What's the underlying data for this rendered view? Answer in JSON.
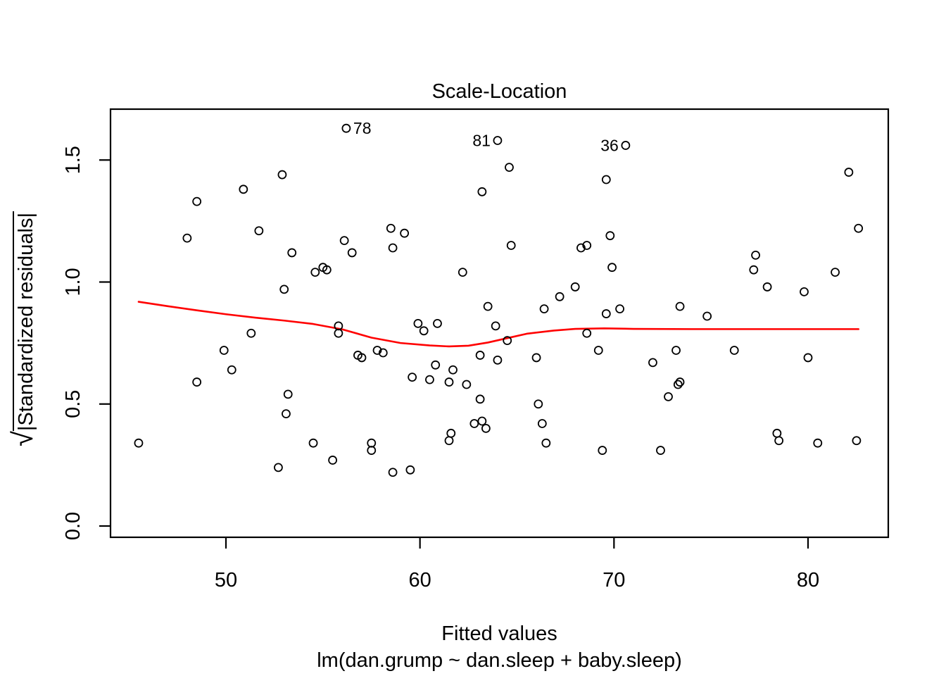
{
  "figure": {
    "background": "#ffffff"
  },
  "chart_data": {
    "type": "scatter",
    "title": "Scale-Location",
    "xlabel": "Fitted values",
    "xlabel_sub": "lm(dan.grump ~ dan.sleep + baby.sleep)",
    "ylabel_radical": "√",
    "ylabel_text": "|Standardized residuals|",
    "x_ticks": [
      "50",
      "60",
      "70",
      "80"
    ],
    "y_ticks": [
      "0.0",
      "0.5",
      "1.0",
      "1.5"
    ],
    "xlim": [
      44.1,
      84.2
    ],
    "ylim": [
      -0.05,
      1.71
    ],
    "grid": false,
    "legend": false,
    "point_color": "#000000",
    "smooth_color": "#ff0000",
    "points": [
      [
        56.2,
        1.63
      ],
      [
        52.9,
        1.44
      ],
      [
        50.9,
        1.38
      ],
      [
        48.5,
        1.33
      ],
      [
        51.7,
        1.21
      ],
      [
        48.0,
        1.18
      ],
      [
        56.1,
        1.17
      ],
      [
        56.5,
        1.12
      ],
      [
        53.4,
        1.12
      ],
      [
        54.6,
        1.04
      ],
      [
        55.0,
        1.06
      ],
      [
        55.2,
        1.05
      ],
      [
        53.0,
        0.97
      ],
      [
        64.0,
        1.58
      ],
      [
        70.6,
        1.56
      ],
      [
        64.6,
        1.47
      ],
      [
        69.6,
        1.42
      ],
      [
        63.2,
        1.37
      ],
      [
        58.5,
        1.22
      ],
      [
        59.2,
        1.2
      ],
      [
        58.6,
        1.14
      ],
      [
        64.7,
        1.15
      ],
      [
        68.3,
        1.14
      ],
      [
        68.6,
        1.15
      ],
      [
        69.8,
        1.19
      ],
      [
        69.9,
        1.06
      ],
      [
        62.2,
        1.04
      ],
      [
        68.0,
        0.98
      ],
      [
        67.2,
        0.94
      ],
      [
        66.4,
        0.89
      ],
      [
        63.5,
        0.9
      ],
      [
        69.6,
        0.87
      ],
      [
        70.3,
        0.89
      ],
      [
        82.1,
        1.45
      ],
      [
        82.6,
        1.22
      ],
      [
        77.3,
        1.11
      ],
      [
        77.2,
        1.05
      ],
      [
        77.9,
        0.98
      ],
      [
        79.8,
        0.96
      ],
      [
        81.4,
        1.04
      ],
      [
        73.4,
        0.9
      ],
      [
        74.8,
        0.86
      ],
      [
        51.3,
        0.79
      ],
      [
        49.9,
        0.72
      ],
      [
        50.3,
        0.64
      ],
      [
        48.5,
        0.59
      ],
      [
        53.2,
        0.54
      ],
      [
        53.1,
        0.46
      ],
      [
        45.5,
        0.34
      ],
      [
        54.5,
        0.34
      ],
      [
        55.5,
        0.27
      ],
      [
        52.7,
        0.24
      ],
      [
        55.8,
        0.82
      ],
      [
        55.8,
        0.79
      ],
      [
        56.8,
        0.7
      ],
      [
        57.0,
        0.69
      ],
      [
        57.8,
        0.72
      ],
      [
        58.1,
        0.71
      ],
      [
        57.5,
        0.34
      ],
      [
        57.5,
        0.31
      ],
      [
        59.9,
        0.83
      ],
      [
        60.9,
        0.83
      ],
      [
        60.2,
        0.8
      ],
      [
        63.9,
        0.82
      ],
      [
        64.5,
        0.76
      ],
      [
        63.1,
        0.7
      ],
      [
        64.0,
        0.68
      ],
      [
        66.0,
        0.69
      ],
      [
        59.6,
        0.61
      ],
      [
        60.5,
        0.6
      ],
      [
        60.8,
        0.66
      ],
      [
        61.7,
        0.64
      ],
      [
        61.5,
        0.59
      ],
      [
        62.4,
        0.58
      ],
      [
        63.1,
        0.52
      ],
      [
        62.8,
        0.42
      ],
      [
        63.2,
        0.43
      ],
      [
        63.4,
        0.4
      ],
      [
        61.6,
        0.38
      ],
      [
        61.5,
        0.35
      ],
      [
        66.1,
        0.5
      ],
      [
        66.3,
        0.42
      ],
      [
        66.5,
        0.34
      ],
      [
        69.4,
        0.31
      ],
      [
        58.6,
        0.22
      ],
      [
        59.5,
        0.23
      ],
      [
        68.6,
        0.79
      ],
      [
        69.2,
        0.72
      ],
      [
        72.0,
        0.67
      ],
      [
        73.2,
        0.72
      ],
      [
        73.4,
        0.59
      ],
      [
        73.3,
        0.58
      ],
      [
        72.8,
        0.53
      ],
      [
        76.2,
        0.72
      ],
      [
        80.0,
        0.69
      ],
      [
        78.4,
        0.38
      ],
      [
        78.5,
        0.35
      ],
      [
        80.5,
        0.34
      ],
      [
        82.5,
        0.35
      ],
      [
        72.4,
        0.31
      ]
    ],
    "labeled_points": [
      {
        "x": 56.2,
        "y": 1.63,
        "label": "78",
        "side": "right"
      },
      {
        "x": 64.0,
        "y": 1.58,
        "label": "81",
        "side": "left"
      },
      {
        "x": 70.6,
        "y": 1.56,
        "label": "36",
        "side": "left"
      }
    ],
    "smooth": [
      [
        45.5,
        0.919
      ],
      [
        47.0,
        0.901
      ],
      [
        48.5,
        0.884
      ],
      [
        50.0,
        0.868
      ],
      [
        51.5,
        0.854
      ],
      [
        53.0,
        0.842
      ],
      [
        54.5,
        0.828
      ],
      [
        56.0,
        0.806
      ],
      [
        57.5,
        0.772
      ],
      [
        59.0,
        0.75
      ],
      [
        60.5,
        0.74
      ],
      [
        61.5,
        0.736
      ],
      [
        62.5,
        0.739
      ],
      [
        63.5,
        0.752
      ],
      [
        64.5,
        0.77
      ],
      [
        65.5,
        0.788
      ],
      [
        66.9,
        0.801
      ],
      [
        68.0,
        0.808
      ],
      [
        69.5,
        0.81
      ],
      [
        71.0,
        0.808
      ],
      [
        74.0,
        0.807
      ],
      [
        78.0,
        0.807
      ],
      [
        82.6,
        0.807
      ]
    ]
  }
}
